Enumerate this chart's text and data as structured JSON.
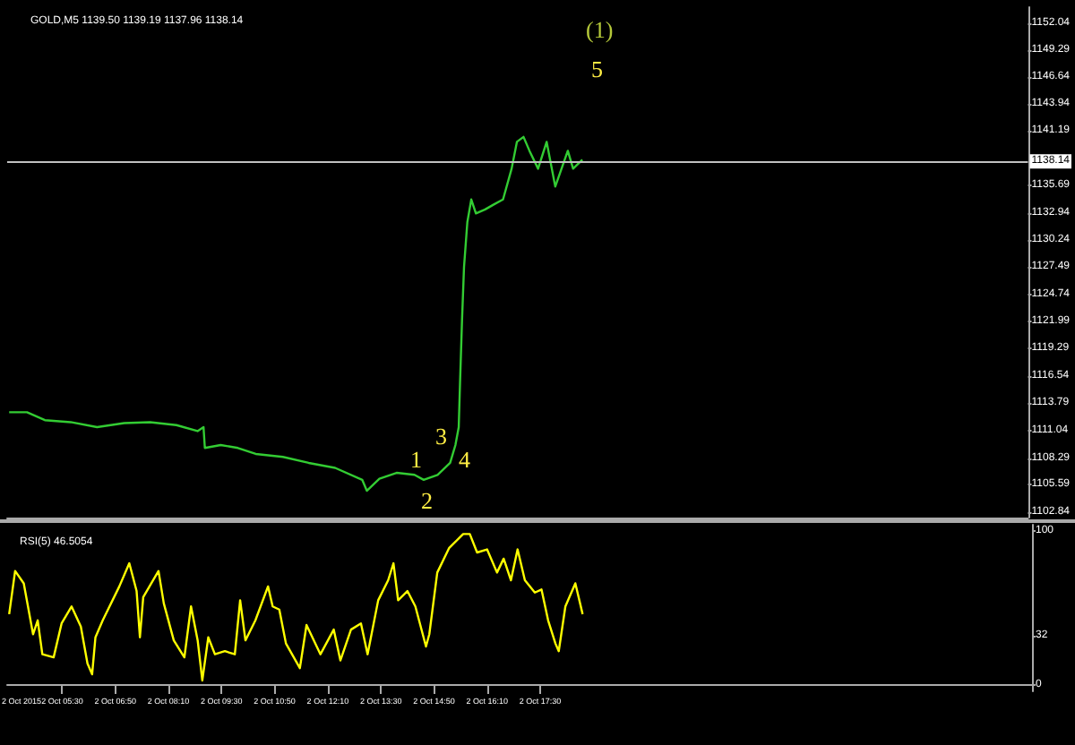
{
  "chart_data": [
    {
      "type": "line",
      "title": "GOLD,M5 1139.50 1139.19 1137.96 1138.14",
      "x": [
        "2015-10-02T04:10",
        "2015-10-02T04:37",
        "2015-10-02T05:04",
        "2015-10-02T05:43",
        "2015-10-02T06:23",
        "2015-10-02T07:04",
        "2015-10-02T07:43",
        "2015-10-02T08:23",
        "2015-10-02T08:55",
        "2015-10-02T09:04",
        "2015-10-02T09:06",
        "2015-10-02T09:30",
        "2015-10-02T09:56",
        "2015-10-02T10:23",
        "2015-10-02T11:04",
        "2015-10-02T11:43",
        "2015-10-02T12:23",
        "2015-10-02T13:04",
        "2015-10-02T13:11",
        "2015-10-02T13:30",
        "2015-10-02T13:56",
        "2015-10-02T14:23",
        "2015-10-02T14:37",
        "2015-10-02T14:58",
        "2015-10-02T15:17",
        "2015-10-02T15:25",
        "2015-10-02T15:30",
        "2015-10-02T15:32",
        "2015-10-02T15:35",
        "2015-10-02T15:38",
        "2015-10-02T15:43",
        "2015-10-02T15:49",
        "2015-10-02T15:56",
        "2015-10-02T16:10",
        "2015-10-02T16:23",
        "2015-10-02T16:37",
        "2015-10-02T16:50",
        "2015-10-02T16:58",
        "2015-10-02T17:08",
        "2015-10-02T17:17",
        "2015-10-02T17:30",
        "2015-10-02T17:43",
        "2015-10-02T17:56",
        "2015-10-02T18:15",
        "2015-10-02T18:23",
        "2015-10-02T18:37"
      ],
      "series": [
        {
          "color": "#33cc33",
          "values": [
            1112.9,
            1112.9,
            1112.1,
            1111.9,
            1111.4,
            1111.8,
            1111.9,
            1111.6,
            1111.0,
            1111.4,
            1109.3,
            1109.6,
            1109.3,
            1108.7,
            1108.4,
            1107.8,
            1107.3,
            1106.1,
            1105.0,
            1106.2,
            1106.8,
            1106.6,
            1106.1,
            1106.6,
            1107.8,
            1109.6,
            1111.4,
            1115.9,
            1122.2,
            1127.5,
            1132.0,
            1134.3,
            1132.9,
            1133.3,
            1133.8,
            1134.3,
            1137.4,
            1140.1,
            1140.6,
            1139.2,
            1137.4,
            1140.1,
            1135.6,
            1139.2,
            1137.4,
            1138.3
          ]
        }
      ],
      "xlim": [
        "2015-10-02T04:07",
        "2015-10-03T05:51"
      ],
      "ylim": [
        1102.3,
        1153.65
      ],
      "yticks": [
        1102.84,
        1105.59,
        1108.29,
        1111.04,
        1113.79,
        1116.54,
        1119.29,
        1121.99,
        1124.74,
        1127.49,
        1130.24,
        1132.94,
        1135.69,
        1141.19,
        1143.94,
        1146.64,
        1149.29,
        1152.04
      ],
      "tick_labels": "y",
      "ref_lines": [
        {
          "axis": "y",
          "value": 1138.14,
          "label": "1138.14",
          "color": "#c0c0c0"
        }
      ],
      "annotations": [
        "(1)",
        "5",
        "1",
        "2",
        "3",
        "4"
      ]
    },
    {
      "type": "line",
      "title": "RSI(5) 46.5054",
      "x": [
        "2015-10-02T04:10",
        "2015-10-02T04:19",
        "2015-10-02T04:32",
        "2015-10-02T04:46",
        "2015-10-02T04:53",
        "2015-10-02T05:00",
        "2015-10-02T05:17",
        "2015-10-02T05:29",
        "2015-10-02T05:44",
        "2015-10-02T05:58",
        "2015-10-02T06:08",
        "2015-10-02T06:15",
        "2015-10-02T06:20",
        "2015-10-02T06:31",
        "2015-10-02T06:56",
        "2015-10-02T07:11",
        "2015-10-02T07:22",
        "2015-10-02T07:27",
        "2015-10-02T07:32",
        "2015-10-02T07:55",
        "2015-10-02T08:03",
        "2015-10-02T08:18",
        "2015-10-02T08:34",
        "2015-10-02T08:44",
        "2015-10-02T08:54",
        "2015-10-02T09:01",
        "2015-10-02T09:10",
        "2015-10-02T09:20",
        "2015-10-02T09:35",
        "2015-10-02T09:50",
        "2015-10-02T09:58",
        "2015-10-02T10:06",
        "2015-10-02T10:21",
        "2015-10-02T10:40",
        "2015-10-02T10:47",
        "2015-10-02T10:57",
        "2015-10-02T11:07",
        "2015-10-02T11:28",
        "2015-10-02T11:38",
        "2015-10-02T11:59",
        "2015-10-02T12:19",
        "2015-10-02T12:29",
        "2015-10-02T12:45",
        "2015-10-02T13:00",
        "2015-10-02T13:10",
        "2015-10-02T13:26",
        "2015-10-02T13:41",
        "2015-10-02T13:49",
        "2015-10-02T13:56",
        "2015-10-02T14:10",
        "2015-10-02T14:22",
        "2015-10-02T14:38",
        "2015-10-02T14:43",
        "2015-10-02T14:55",
        "2015-10-02T15:13",
        "2015-10-02T15:34",
        "2015-10-02T15:44",
        "2015-10-02T15:55",
        "2015-10-02T16:10",
        "2015-10-02T16:25",
        "2015-10-02T16:35",
        "2015-10-02T16:46",
        "2015-10-02T16:56",
        "2015-10-02T17:07",
        "2015-10-02T17:22",
        "2015-10-02T17:32",
        "2015-10-02T17:42",
        "2015-10-02T17:53",
        "2015-10-02T17:58",
        "2015-10-02T18:08",
        "2015-10-02T18:23",
        "2015-10-02T18:34"
      ],
      "series": [
        {
          "color": "#ffff00",
          "values": [
            46,
            74,
            66,
            33,
            42,
            20,
            18,
            40,
            51,
            38,
            14,
            7,
            31,
            42,
            64,
            79,
            61,
            31,
            57,
            74,
            53,
            29,
            18,
            51,
            29,
            3,
            31,
            20,
            22,
            20,
            55,
            29,
            42,
            64,
            51,
            49,
            27,
            11,
            39,
            20,
            36,
            16,
            36,
            40,
            20,
            55,
            68,
            79,
            55,
            61,
            51,
            25,
            33,
            73,
            89,
            98,
            98,
            86,
            88,
            73,
            82,
            68,
            88,
            68,
            60,
            62,
            42,
            27,
            22,
            51,
            66,
            46
          ]
        }
      ],
      "xlim": [
        "2015-10-02T04:07",
        "2015-10-03T05:51"
      ],
      "ylim": [
        -4,
        104
      ],
      "yticks": [
        0,
        32,
        100
      ],
      "annotations": [
        "2 Oct 2015"
      ],
      "xticks": [
        {
          "value": "2015-10-02T05:30",
          "label": "2 Oct 05:30"
        },
        {
          "value": "2015-10-02T06:50",
          "label": "2 Oct 06:50"
        },
        {
          "value": "2015-10-02T08:10",
          "label": "2 Oct 08:10"
        },
        {
          "value": "2015-10-02T09:30",
          "label": "2 Oct 09:30"
        },
        {
          "value": "2015-10-02T10:50",
          "label": "2 Oct 10:50"
        },
        {
          "value": "2015-10-02T12:10",
          "label": "2 Oct 12:10"
        },
        {
          "value": "2015-10-02T13:30",
          "label": "2 Oct 13:30"
        },
        {
          "value": "2015-10-02T14:50",
          "label": "2 Oct 14:50"
        },
        {
          "value": "2015-10-02T16:10",
          "label": "2 Oct 16:10"
        },
        {
          "value": "2015-10-02T17:30",
          "label": "2 Oct 17:30"
        }
      ]
    }
  ]
}
